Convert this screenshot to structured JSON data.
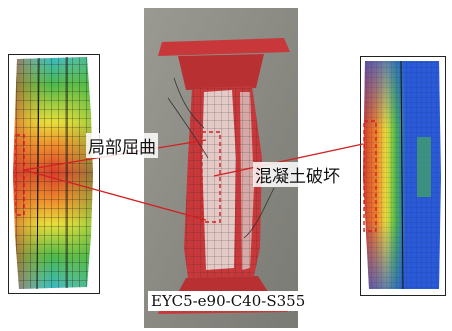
{
  "labels": {
    "local_buckling": "局部屈曲",
    "concrete_failure": "混凝土破坏",
    "specimen_id": "EYC5-e90-C40-S355"
  },
  "colors": {
    "callout_line": "#d22020",
    "dashed_box": "#d22020",
    "fe_red": "#d83a2a",
    "fe_orange": "#f08a2c",
    "fe_yellow": "#e8e03a",
    "fe_green": "#4ab84a",
    "fe_cyan": "#38b8c8",
    "fe_blue": "#2a5ad8",
    "steel_red": "#c8383a",
    "concrete_white": "#e8e4e0",
    "ground_gray": "#8a8a82"
  },
  "icons": {
    "left_model": "fe-contour-model-icon",
    "photo": "tested-specimen-photo",
    "right_model": "fe-concrete-damage-model-icon"
  }
}
